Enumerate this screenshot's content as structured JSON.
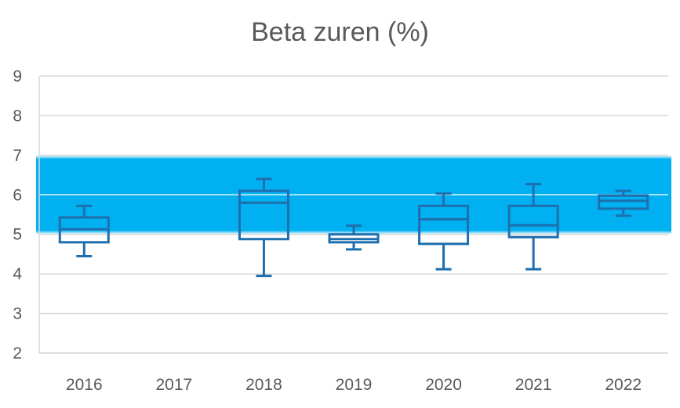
{
  "chart_data": {
    "type": "boxplot",
    "title": "Beta zuren (%)",
    "xlabel": "",
    "ylabel": "",
    "ylim": [
      2,
      9
    ],
    "yticks": [
      "2",
      "3",
      "4",
      "5",
      "6",
      "7",
      "8",
      "9"
    ],
    "categories": [
      "2016",
      "2017",
      "2018",
      "2019",
      "2020",
      "2021",
      "2022"
    ],
    "grid": true,
    "reference_band": {
      "from": 5.0,
      "to": 7.0,
      "color": "#00B0F0"
    },
    "box_color": "#1F6FAE",
    "boxes": [
      {
        "category": "2016",
        "min": 4.45,
        "q1": 4.8,
        "median": 5.13,
        "q3": 5.43,
        "max": 5.72
      },
      {
        "category": "2017",
        "min": null,
        "q1": null,
        "median": null,
        "q3": null,
        "max": null
      },
      {
        "category": "2018",
        "min": 3.95,
        "q1": 4.88,
        "median": 5.8,
        "q3": 6.1,
        "max": 6.4
      },
      {
        "category": "2019",
        "min": 4.62,
        "q1": 4.8,
        "median": 4.88,
        "q3": 5.0,
        "max": 5.22
      },
      {
        "category": "2020",
        "min": 4.12,
        "q1": 4.76,
        "median": 5.38,
        "q3": 5.72,
        "max": 6.03
      },
      {
        "category": "2021",
        "min": 4.12,
        "q1": 4.93,
        "median": 5.23,
        "q3": 5.72,
        "max": 6.27
      },
      {
        "category": "2022",
        "min": 5.47,
        "q1": 5.65,
        "median": 5.85,
        "q3": 5.98,
        "max": 6.1
      }
    ]
  }
}
